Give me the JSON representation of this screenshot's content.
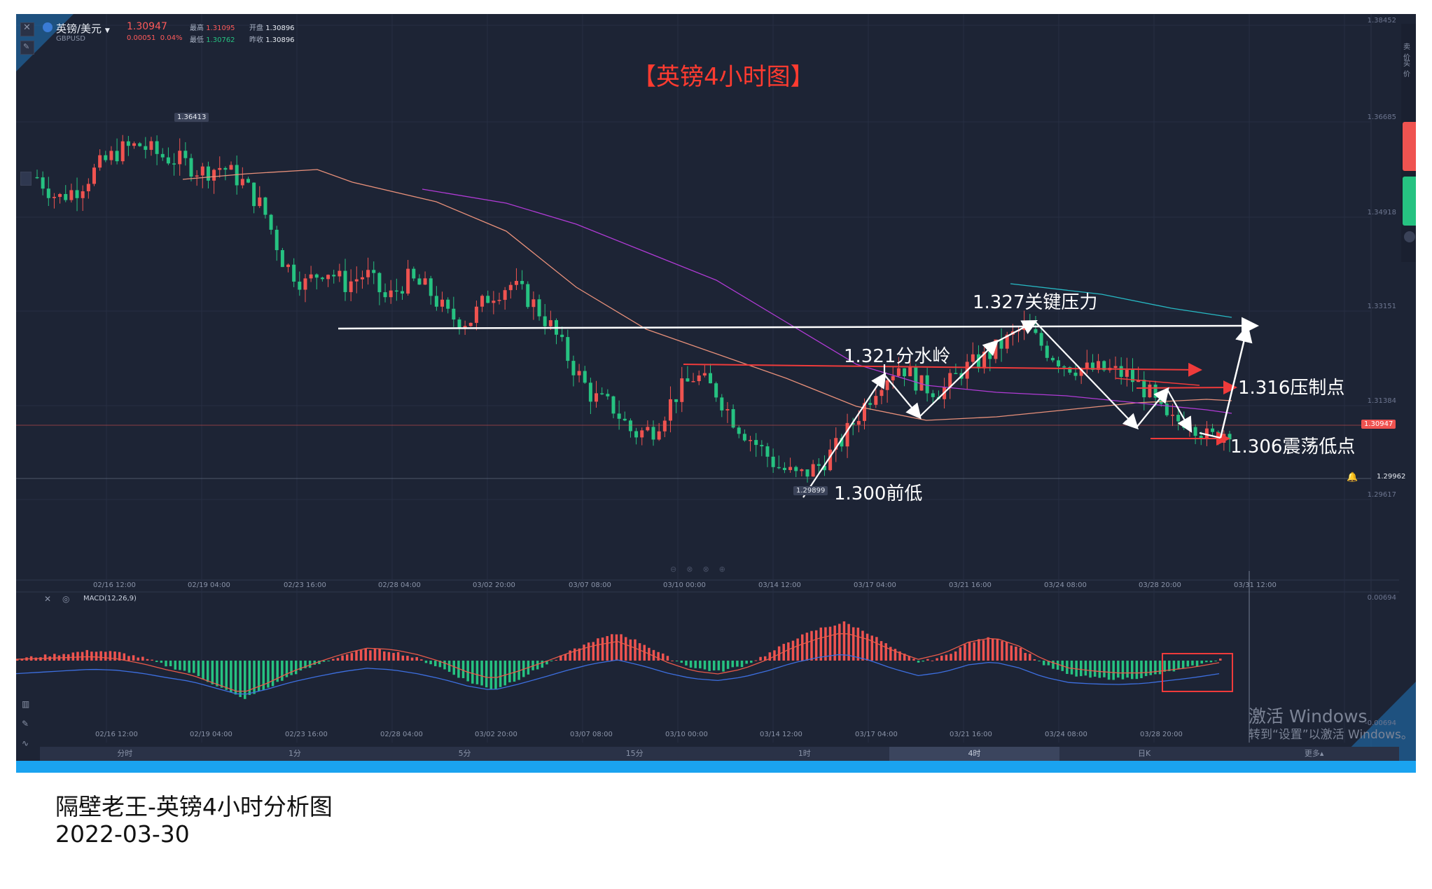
{
  "header": {
    "symbol_name": "英镑/美元",
    "symbol_code": "GBPUSD",
    "last_price": "1.30947",
    "change": "0.00051",
    "change_pct": "0.04%",
    "high_label": "最高",
    "high_value": "1.31095",
    "open_label": "开盘",
    "open_value": "1.30896",
    "low_label": "最低",
    "low_value": "1.30762",
    "prev_close_label": "昨收",
    "prev_close_value": "1.30896"
  },
  "chart_title": "【英镑4小时图】",
  "annotations": {
    "key_pressure": "1.327关键压力",
    "watershed": "1.321分水岭",
    "suppression": "1.316压制点",
    "oscillation_low": "1.306震荡低点",
    "previous_low": "1.300前低"
  },
  "price_tags": {
    "high_marker": "1.36413",
    "low_marker": "1.29899",
    "current": "1.30947",
    "alert": "1.29962"
  },
  "y_axis_labels": [
    "1.38452",
    "1.36685",
    "1.34918",
    "1.33151",
    "1.31384",
    "1.29617"
  ],
  "x_axis_labels": [
    "02/16 12:00",
    "02/19 04:00",
    "02/23 16:00",
    "02/28 04:00",
    "03/02 20:00",
    "03/07 08:00",
    "03/10 00:00",
    "03/14 12:00",
    "03/17 04:00",
    "03/21 16:00",
    "03/24 08:00",
    "03/28 20:00",
    "03/31 12:00"
  ],
  "macd": {
    "label": "MACD(12,26,9)",
    "top_value": "0.00694",
    "bottom_value": "-0.00694"
  },
  "timeframe_tabs": [
    "分时",
    "1分",
    "5分",
    "15分",
    "1时",
    "4时",
    "日K",
    "更多▴"
  ],
  "active_tab": "4时",
  "watermark": {
    "line1": "激活 Windows",
    "line2": "转到“设置”以激活 Windows。"
  },
  "caption": {
    "line1": "隔壁老王-英镑4小时分析图",
    "line2": "2022-03-30"
  },
  "side_panel": {
    "item1": "卖价",
    "item2": "买价"
  },
  "colors": {
    "background": "#1d2435",
    "up": "#ef5350",
    "down": "#26c281",
    "title_red": "#ff3b30",
    "frame_blue": "#1aa3f0"
  },
  "chart_data": {
    "type": "candlestick",
    "y_range": [
      1.2905,
      1.3895
    ],
    "price_levels": {
      "key_pressure": 1.327,
      "watershed": 1.321,
      "suppression": 1.316,
      "oscillation_low": 1.306,
      "previous_low": 1.3,
      "current": 1.30947
    },
    "close_path": [
      1.356,
      1.352,
      1.354,
      1.358,
      1.361,
      1.362,
      1.36,
      1.359,
      1.357,
      1.358,
      1.355,
      1.35,
      1.34,
      1.336,
      1.339,
      1.336,
      1.338,
      1.333,
      1.337,
      1.335,
      1.33,
      1.329,
      1.334,
      1.336,
      1.333,
      1.328,
      1.321,
      1.315,
      1.313,
      1.308,
      1.309,
      1.315,
      1.319,
      1.316,
      1.31,
      1.306,
      1.302,
      1.3,
      1.302,
      1.306,
      1.312,
      1.318,
      1.321,
      1.317,
      1.316,
      1.32,
      1.322,
      1.325,
      1.328,
      1.324,
      1.321,
      1.32,
      1.32,
      1.319,
      1.316,
      1.31,
      1.311,
      1.307,
      1.309
    ],
    "macd_hist": [
      0.2,
      0.5,
      0.8,
      1.1,
      0.9,
      0.3,
      -0.6,
      -1.4,
      -2.8,
      -4.2,
      -3.0,
      -1.5,
      -0.4,
      0.6,
      1.3,
      1.0,
      0.2,
      -0.9,
      -2.3,
      -3.2,
      -2.0,
      -0.6,
      0.9,
      2.2,
      3.0,
      1.8,
      0.3,
      -0.8,
      -1.2,
      -0.5,
      0.8,
      2.4,
      3.5,
      4.2,
      3.0,
      1.2,
      -0.2,
      0.5,
      2.0,
      2.6,
      1.4,
      -0.5,
      -1.6,
      -1.9,
      -2.0,
      -1.8,
      -1.2,
      -0.6,
      0.2
    ]
  }
}
